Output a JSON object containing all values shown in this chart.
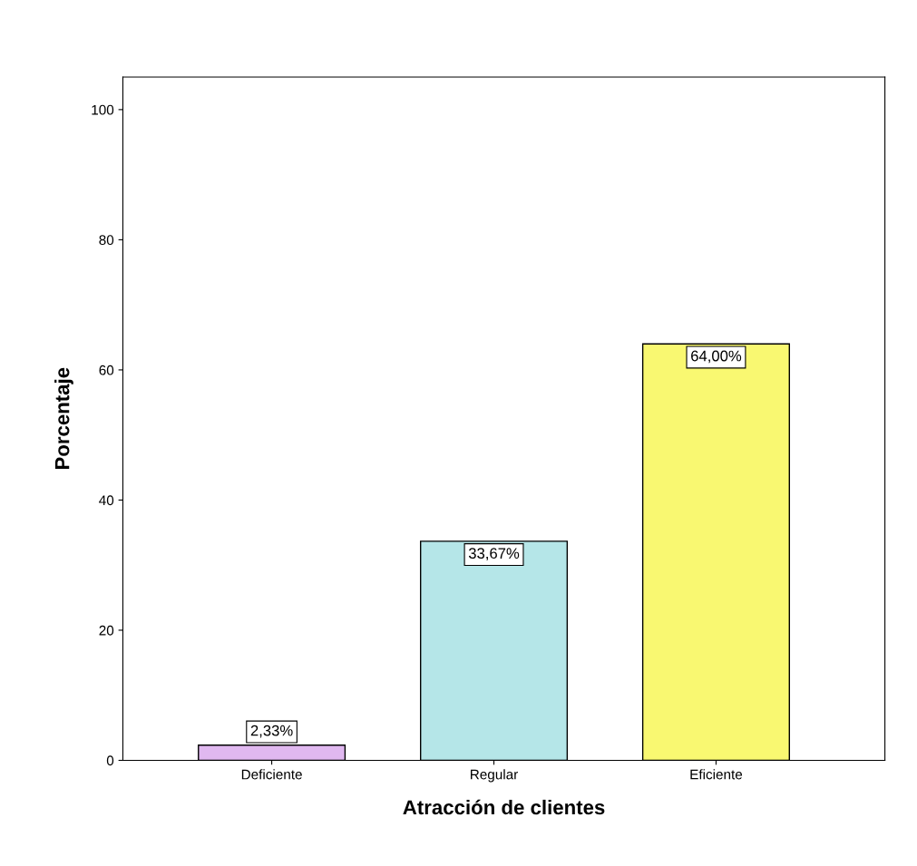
{
  "chart_data": {
    "type": "bar",
    "xlabel": "Atracción de clientes",
    "ylabel": "Porcentaje",
    "categories": [
      "Deficiente",
      "Regular",
      "Eficiente"
    ],
    "values": [
      2.33,
      33.67,
      64.0
    ],
    "colors": [
      "#e0b8f0",
      "#b5e6e8",
      "#f9f871"
    ],
    "value_labels": [
      "2,33%",
      "33,67%",
      "64,00%"
    ],
    "ylim": [
      0,
      105
    ],
    "yticks": [
      0,
      20,
      40,
      60,
      80,
      100
    ],
    "grid": false,
    "legend": false
  }
}
